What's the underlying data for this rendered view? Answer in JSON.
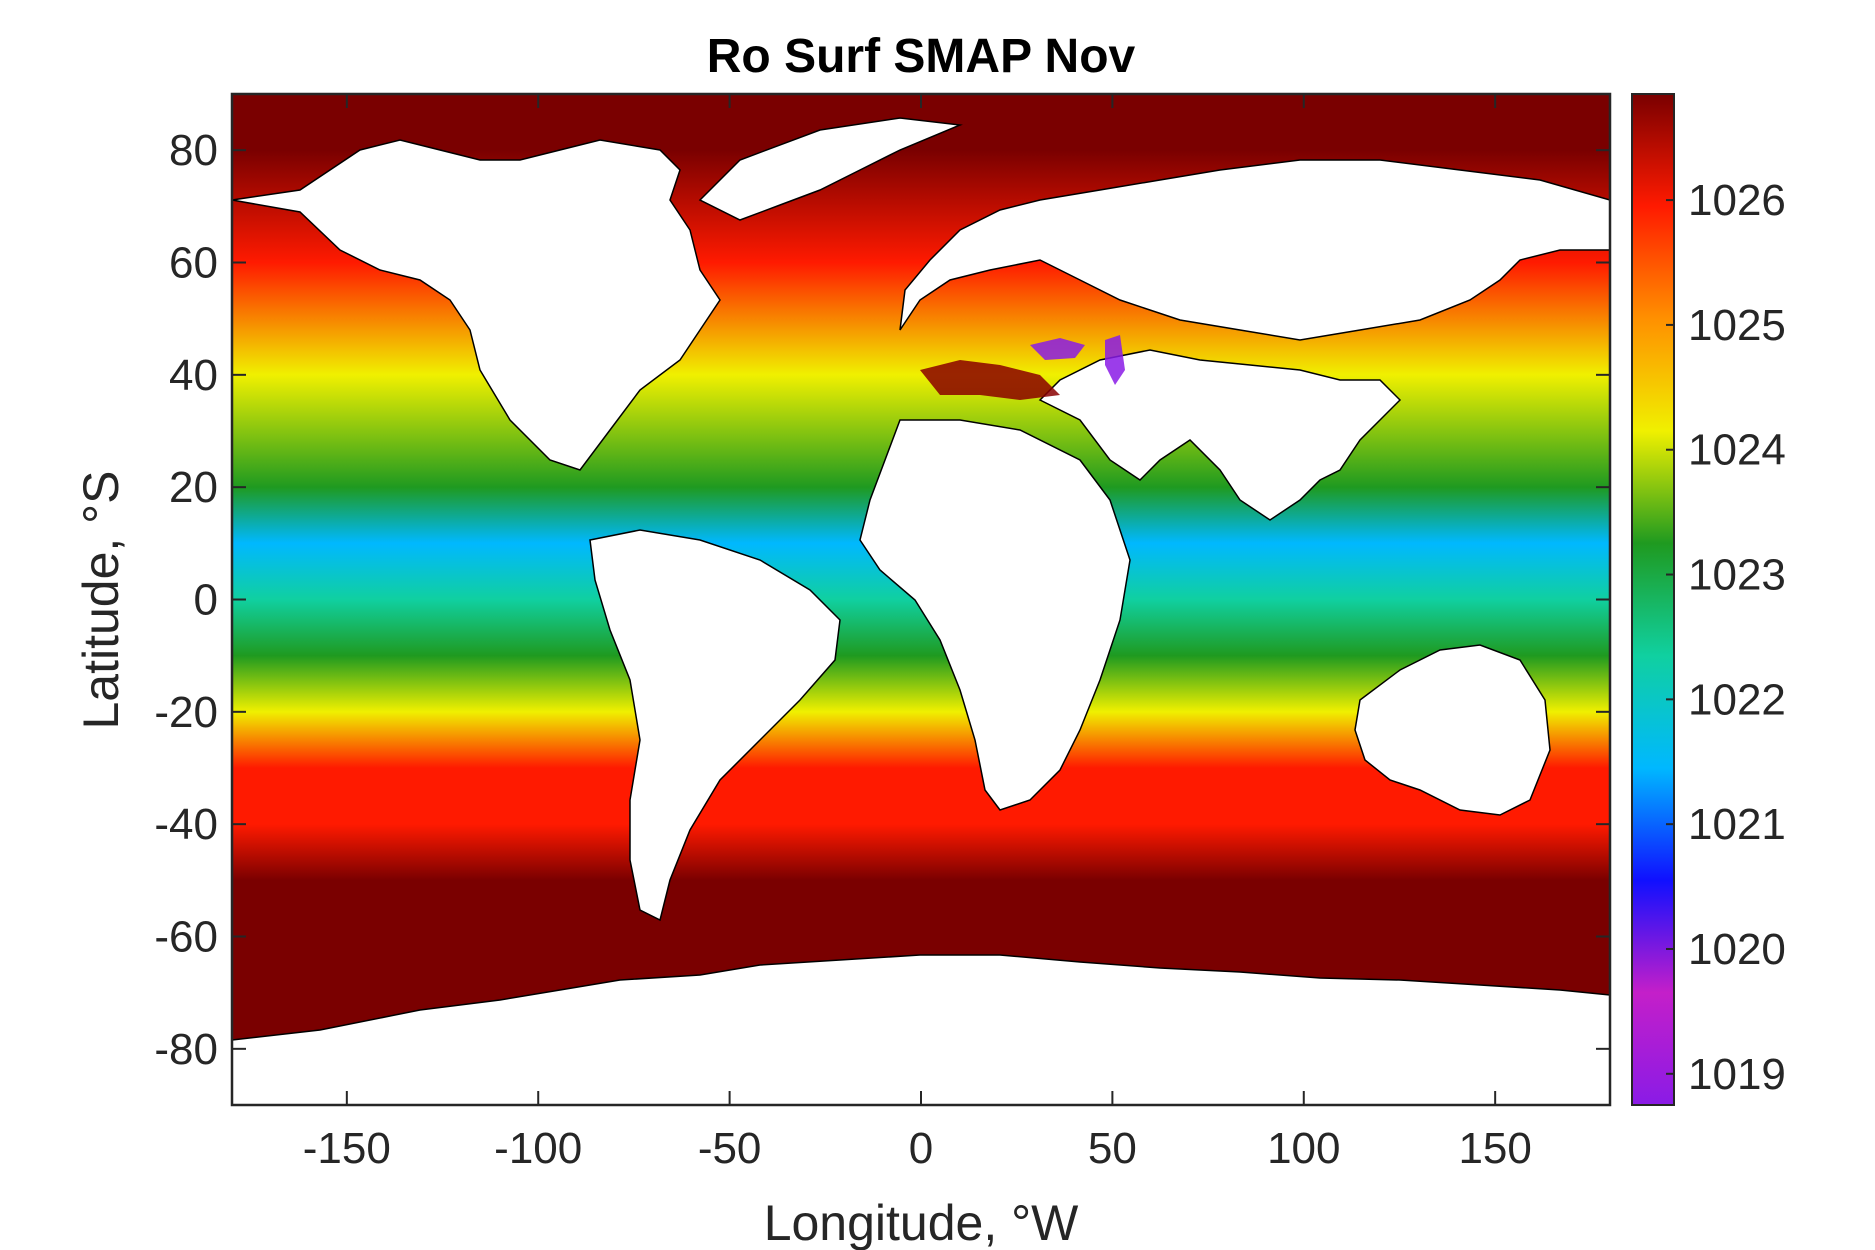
{
  "chart_data": {
    "type": "heatmap",
    "title": "Ro Surf SMAP Nov",
    "xlabel": "Longitude, °W",
    "ylabel": "Latitude, °S",
    "xlim": [
      -180,
      180
    ],
    "ylim": [
      -90,
      90
    ],
    "xticks": [
      -150,
      -100,
      -50,
      0,
      50,
      100,
      150
    ],
    "xtick_labels": [
      "-150",
      "-100",
      "-50",
      "0",
      "50",
      "100",
      "150"
    ],
    "yticks": [
      80,
      60,
      40,
      20,
      0,
      -20,
      -40,
      -60,
      -80
    ],
    "ytick_labels": [
      "80",
      "60",
      "40",
      "20",
      "0",
      "-20",
      "-40",
      "-60",
      "-80"
    ],
    "colorbar": {
      "range": [
        1018.75,
        1026.85
      ],
      "ticks": [
        1019,
        1020,
        1021,
        1022,
        1023,
        1024,
        1025,
        1026
      ],
      "tick_labels": [
        "1019",
        "1020",
        "1021",
        "1022",
        "1023",
        "1024",
        "1025",
        "1026"
      ],
      "colormap": "jet-like (violet → blue → cyan → green → yellow → red → dark red)",
      "stops": [
        "#8a1be6",
        "#c41fc9",
        "#1010ff",
        "#00b8ff",
        "#10d0a0",
        "#1f9a20",
        "#f0f000",
        "#ff9000",
        "#ff1a00",
        "#7a0000"
      ]
    },
    "land_color": "#ffffff",
    "grid": false,
    "zonal_profile": [
      {
        "lat": 80,
        "value": 1026.8
      },
      {
        "lat": 60,
        "value": 1025.8
      },
      {
        "lat": 40,
        "value": 1024.6
      },
      {
        "lat": 20,
        "value": 1023.0
      },
      {
        "lat": 10,
        "value": 1021.2
      },
      {
        "lat": 0,
        "value": 1022.3
      },
      {
        "lat": -10,
        "value": 1023.4
      },
      {
        "lat": -20,
        "value": 1024.4
      },
      {
        "lat": -30,
        "value": 1025.6
      },
      {
        "lat": -40,
        "value": 1026.2
      },
      {
        "lat": -50,
        "value": 1026.7
      },
      {
        "lat": -60,
        "value": 1026.8
      }
    ]
  }
}
